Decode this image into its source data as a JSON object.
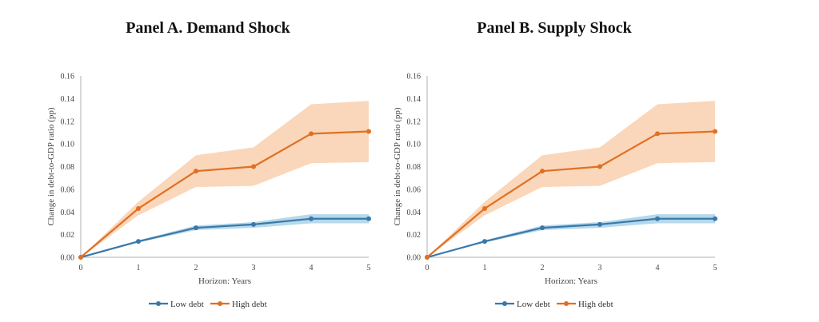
{
  "colors": {
    "low_debt_line": "#3A78A8",
    "low_debt_band": "#9CCBE6",
    "high_debt_line": "#E07023",
    "high_debt_band": "#F8C9A3",
    "axis": "#b0b0b0"
  },
  "chart_data": [
    {
      "type": "line",
      "title": "Panel A. Demand Shock",
      "xlabel": "Horizon: Years",
      "ylabel": "Change in debt-to-GDP ratio (pp)",
      "x": [
        0,
        1,
        2,
        3,
        4,
        5
      ],
      "xticks": [
        "0",
        "1",
        "2",
        "3",
        "4",
        "5"
      ],
      "yticks": [
        "0.00",
        "0.02",
        "0.04",
        "0.06",
        "0.08",
        "0.10",
        "0.12",
        "0.14",
        "0.16"
      ],
      "ylim": [
        0,
        0.16
      ],
      "grid": false,
      "legend_position": "bottom",
      "series": [
        {
          "name": "Low debt",
          "values": [
            0,
            0.014,
            0.026,
            0.029,
            0.034,
            0.034
          ],
          "band_lower": [
            0,
            0.013,
            0.024,
            0.026,
            0.03,
            0.03
          ],
          "band_upper": [
            0,
            0.015,
            0.028,
            0.031,
            0.038,
            0.038
          ]
        },
        {
          "name": "High debt",
          "values": [
            0,
            0.043,
            0.076,
            0.08,
            0.109,
            0.111
          ],
          "band_lower": [
            0,
            0.037,
            0.062,
            0.063,
            0.083,
            0.084
          ],
          "band_upper": [
            0,
            0.049,
            0.09,
            0.097,
            0.135,
            0.138
          ]
        }
      ]
    },
    {
      "type": "line",
      "title": "Panel B. Supply Shock",
      "xlabel": "Horizon: Years",
      "ylabel": "Change in debt-to-GDP ratio (pp)",
      "x": [
        0,
        1,
        2,
        3,
        4,
        5
      ],
      "xticks": [
        "0",
        "1",
        "2",
        "3",
        "4",
        "5"
      ],
      "yticks": [
        "0.00",
        "0.02",
        "0.04",
        "0.06",
        "0.08",
        "0.10",
        "0.12",
        "0.14",
        "0.16"
      ],
      "ylim": [
        0,
        0.16
      ],
      "grid": false,
      "legend_position": "bottom",
      "series": [
        {
          "name": "Low debt",
          "values": [
            0,
            0.014,
            0.026,
            0.029,
            0.034,
            0.034
          ],
          "band_lower": [
            0,
            0.013,
            0.024,
            0.026,
            0.03,
            0.03
          ],
          "band_upper": [
            0,
            0.015,
            0.028,
            0.031,
            0.038,
            0.038
          ]
        },
        {
          "name": "High debt",
          "values": [
            0,
            0.043,
            0.076,
            0.08,
            0.109,
            0.111
          ],
          "band_lower": [
            0,
            0.037,
            0.062,
            0.063,
            0.083,
            0.084
          ],
          "band_upper": [
            0,
            0.049,
            0.09,
            0.097,
            0.135,
            0.138
          ]
        }
      ]
    }
  ]
}
